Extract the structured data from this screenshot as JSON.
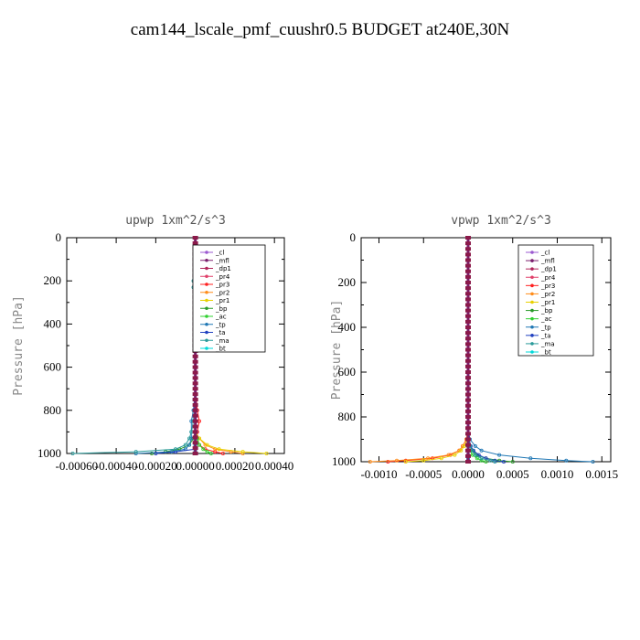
{
  "figure_title": "cam144_lscale_pmf_cuushr0.5  BUDGET at240E,30N",
  "legend_entries": [
    {
      "name": "_cl",
      "color": "#9b59d0"
    },
    {
      "name": "_mfl",
      "color": "#7a1f6e"
    },
    {
      "name": "_dp1",
      "color": "#b0245a"
    },
    {
      "name": "_pr4",
      "color": "#e0406a"
    },
    {
      "name": "_pr3",
      "color": "#ff2020"
    },
    {
      "name": "_pr2",
      "color": "#ff8c1a"
    },
    {
      "name": "_pr1",
      "color": "#e8d000"
    },
    {
      "name": "_bp",
      "color": "#2a9a2a"
    },
    {
      "name": "_ac",
      "color": "#30d030"
    },
    {
      "name": "_tp",
      "color": "#1f77b4"
    },
    {
      "name": "_ta",
      "color": "#2040c0"
    },
    {
      "name": "_ma",
      "color": "#2a9a9a"
    },
    {
      "name": "_bt",
      "color": "#00d8d8"
    }
  ],
  "chart_data": [
    {
      "type": "line",
      "title": "upwp   1xm^2/s^3",
      "ylabel": "Pressure [hPa]",
      "xlim": [
        -0.00065,
        0.00045
      ],
      "ylim": [
        1000,
        0
      ],
      "x_tick_labels": [
        "-0.00060",
        "-0.00040",
        "-0.00020",
        "0.00000",
        "0.00020",
        "0.00040"
      ],
      "x_ticks": [
        -0.0006,
        -0.0004,
        -0.0002,
        0.0,
        0.0002,
        0.0004
      ],
      "y_tick_labels": [
        "0",
        "200",
        "400",
        "600",
        "800",
        "1000"
      ],
      "y_ticks": [
        0,
        200,
        400,
        600,
        800,
        1000
      ],
      "y": [
        0,
        100,
        200,
        230,
        300,
        400,
        500,
        600,
        700,
        750,
        800,
        850,
        900,
        930,
        960,
        980,
        992,
        1000
      ],
      "series": [
        {
          "name": "_cl",
          "values": [
            0,
            0,
            0,
            0,
            0,
            0,
            0,
            0,
            0,
            0,
            0,
            0,
            0,
            0,
            0,
            0,
            0,
            0
          ]
        },
        {
          "name": "_mfl",
          "values": [
            0,
            0,
            0,
            0,
            0,
            0,
            0,
            0,
            0,
            0,
            0,
            0,
            0,
            0,
            0,
            0,
            0,
            0
          ]
        },
        {
          "name": "_dp1",
          "values": [
            0,
            0,
            0,
            0,
            0,
            0,
            0,
            0,
            0,
            0,
            0,
            0,
            0,
            0,
            0,
            0,
            0,
            0
          ]
        },
        {
          "name": "_pr4",
          "values": [
            0,
            0,
            0,
            0,
            0,
            0,
            0,
            0,
            0,
            0,
            0,
            0,
            0,
            0,
            0,
            0,
            0,
            0
          ]
        },
        {
          "name": "_pr3",
          "values": [
            0,
            0,
            1e-05,
            1e-05,
            0,
            0,
            0,
            0,
            0,
            5e-06,
            1e-05,
            2e-05,
            1e-05,
            1e-05,
            2e-05,
            5e-05,
            0.0001,
            0.00014
          ]
        },
        {
          "name": "_pr2",
          "values": [
            0,
            0,
            0,
            0,
            0,
            0,
            0,
            0,
            0,
            0,
            0,
            0,
            0,
            2e-05,
            5e-05,
            0.0001,
            0.00018,
            0.00024
          ]
        },
        {
          "name": "_pr1",
          "values": [
            0,
            0,
            0,
            0,
            0,
            0,
            0,
            0,
            0,
            0,
            0,
            0,
            0,
            2e-05,
            6e-05,
            0.00012,
            0.00024,
            0.00036
          ]
        },
        {
          "name": "_bp",
          "values": [
            0,
            0,
            0,
            0,
            0,
            0,
            0,
            0,
            0,
            0,
            0,
            0,
            0,
            -1e-05,
            -3e-05,
            -8e-05,
            -0.00015,
            -0.00022
          ]
        },
        {
          "name": "_ac",
          "values": [
            0,
            0,
            0,
            0,
            0,
            0,
            0,
            0,
            0,
            0,
            0,
            0,
            0,
            1e-05,
            2e-05,
            4e-05,
            6e-05,
            8e-05
          ]
        },
        {
          "name": "_tp",
          "values": [
            0,
            0,
            0,
            0,
            0,
            0,
            0,
            0,
            0,
            -5e-06,
            -1e-05,
            -2e-05,
            -2e-05,
            -2e-05,
            -3e-05,
            -5e-05,
            -0.00012,
            -0.0003
          ]
        },
        {
          "name": "_ta",
          "values": [
            0,
            0,
            0,
            0,
            0,
            0,
            0,
            0,
            0,
            0,
            0,
            0,
            0,
            0,
            0,
            0,
            -0.0001,
            -0.0002
          ]
        },
        {
          "name": "_ma",
          "values": [
            0,
            0,
            -1e-05,
            -1e-05,
            0,
            0,
            0,
            0,
            0,
            0,
            -5e-06,
            -1e-05,
            -2e-05,
            -3e-05,
            -5e-05,
            -0.0001,
            -0.0003,
            -0.00062
          ]
        },
        {
          "name": "_bt",
          "values": [
            0,
            0,
            0,
            0,
            0,
            0,
            0,
            0,
            0,
            0,
            0,
            0,
            0,
            0,
            0,
            0,
            0,
            0
          ]
        }
      ]
    },
    {
      "type": "line",
      "title": "vpwp   1xm^2/s^3",
      "ylabel": "Pressure [hPa]",
      "xlim": [
        -0.0012,
        0.0016
      ],
      "ylim": [
        1000,
        0
      ],
      "x_tick_labels": [
        "-0.0010",
        "-0.0005",
        "0.0000",
        "0.0005",
        "0.0010",
        "0.0015"
      ],
      "x_ticks": [
        -0.001,
        -0.0005,
        0.0,
        0.0005,
        0.001,
        0.0015
      ],
      "y_tick_labels": [
        "0",
        "200",
        "400",
        "600",
        "800",
        "1000"
      ],
      "y_ticks": [
        0,
        200,
        400,
        600,
        800,
        1000
      ],
      "y": [
        0,
        100,
        200,
        300,
        400,
        500,
        600,
        700,
        800,
        850,
        900,
        930,
        950,
        970,
        985,
        995,
        1000
      ],
      "series": [
        {
          "name": "_cl",
          "values": [
            0,
            0,
            0,
            0,
            0,
            0,
            0,
            0,
            0,
            0,
            0,
            0,
            0,
            0,
            0,
            0,
            0
          ]
        },
        {
          "name": "_mfl",
          "values": [
            0,
            0,
            0,
            0,
            0,
            0,
            0,
            0,
            0,
            0,
            0,
            0,
            0,
            0,
            0,
            0,
            0
          ]
        },
        {
          "name": "_dp1",
          "values": [
            0,
            0,
            0,
            0,
            0,
            0,
            0,
            0,
            0,
            0,
            0,
            0,
            0,
            0,
            0,
            0,
            0
          ]
        },
        {
          "name": "_pr4",
          "values": [
            0,
            0,
            0,
            0,
            0,
            0,
            0,
            0,
            0,
            0,
            0,
            0,
            0,
            0,
            0,
            0,
            0
          ]
        },
        {
          "name": "_pr3",
          "values": [
            0,
            0,
            0,
            0,
            0,
            0,
            0,
            0,
            0,
            0,
            -2e-05,
            -6e-05,
            -0.0001,
            -0.0002,
            -0.0004,
            -0.0007,
            -0.0009
          ]
        },
        {
          "name": "_pr2",
          "values": [
            0,
            0,
            0,
            0,
            0,
            0,
            0,
            0,
            0,
            0,
            -2e-05,
            -6e-05,
            -0.0001,
            -0.00022,
            -0.00045,
            -0.0008,
            -0.0011
          ]
        },
        {
          "name": "_pr1",
          "values": [
            0,
            0,
            0,
            0,
            0,
            0,
            0,
            0,
            0,
            0,
            -1e-05,
            -4e-05,
            -8e-05,
            -0.00015,
            -0.0003,
            -0.0005,
            -0.0007
          ]
        },
        {
          "name": "_bp",
          "values": [
            0,
            0,
            0,
            0,
            0,
            0,
            0,
            0,
            0,
            0,
            0,
            2e-05,
            5e-05,
            0.0001,
            0.0002,
            0.00035,
            0.0005
          ]
        },
        {
          "name": "_ac",
          "values": [
            0,
            0,
            0,
            0,
            0,
            0,
            0,
            0,
            0,
            0,
            0,
            0,
            2e-05,
            5e-05,
            0.0001,
            0.00015,
            0.0002
          ]
        },
        {
          "name": "_tp",
          "values": [
            0,
            0,
            0,
            0,
            0,
            0,
            0,
            0,
            0,
            0,
            2e-05,
            8e-05,
            0.00015,
            0.00035,
            0.0007,
            0.0011,
            0.0014
          ]
        },
        {
          "name": "_ta",
          "values": [
            0,
            0,
            0,
            0,
            0,
            0,
            0,
            0,
            0,
            0,
            1e-05,
            3e-05,
            6e-05,
            0.00012,
            0.0002,
            0.0003,
            0.0004
          ]
        },
        {
          "name": "_ma",
          "values": [
            0,
            0,
            0,
            0,
            0,
            0,
            0,
            0,
            0,
            0,
            1e-05,
            2e-05,
            4e-05,
            8e-05,
            0.00015,
            0.00025,
            0.0003
          ]
        },
        {
          "name": "_bt",
          "values": [
            0,
            0,
            0,
            0,
            0,
            0,
            0,
            0,
            0,
            0,
            0,
            0,
            0,
            0,
            0,
            0,
            0
          ]
        }
      ]
    }
  ]
}
